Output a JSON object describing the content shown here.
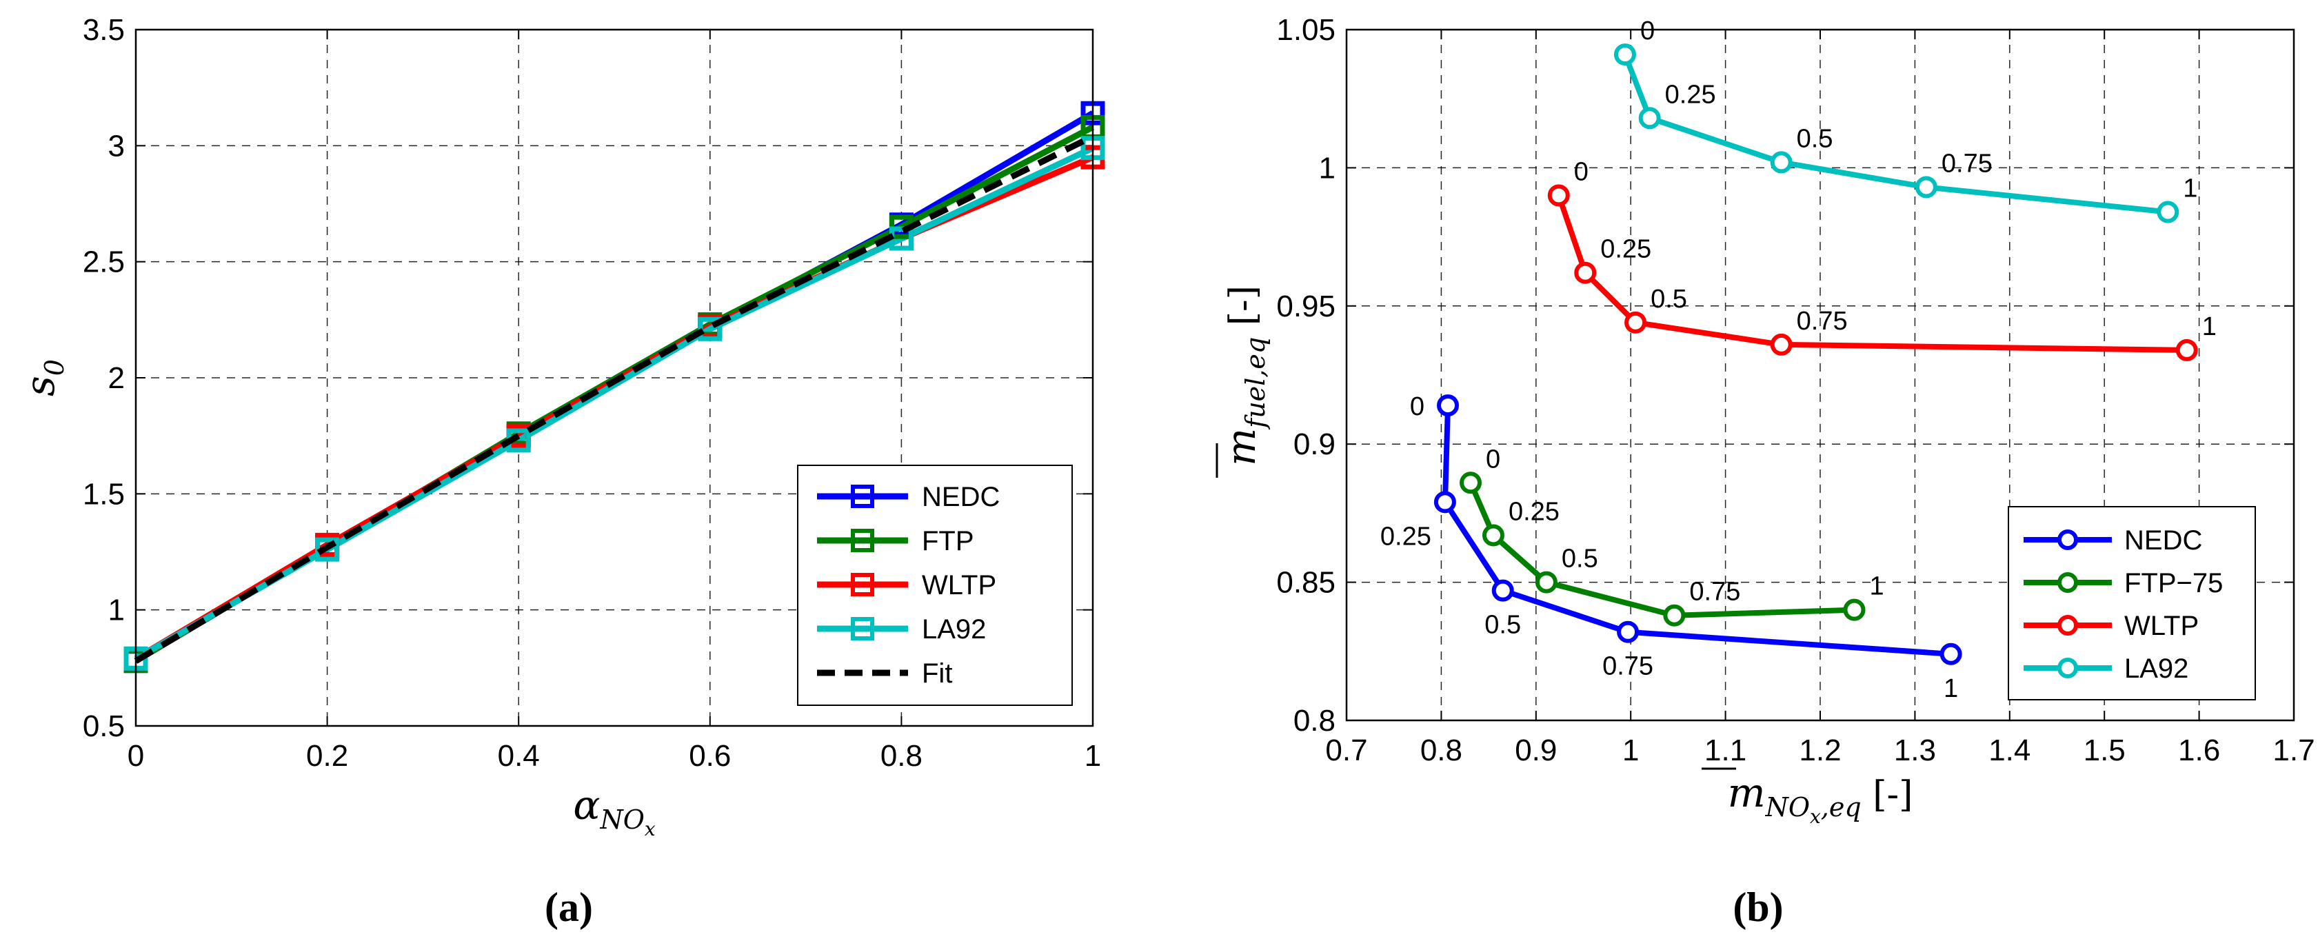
{
  "chart_data": [
    {
      "id": "a",
      "type": "line",
      "caption": "(a)",
      "xlabel": "α",
      "xlabel_sub": "NO",
      "xlabel_subsub": "x",
      "ylabel": "s",
      "ylabel_sub": "0",
      "xlim": [
        0,
        1
      ],
      "ylim": [
        0.5,
        3.5
      ],
      "xticks": [
        0,
        0.2,
        0.4,
        0.6,
        0.8,
        1
      ],
      "xtick_labels": [
        "0",
        "0.2",
        "0.4",
        "0.6",
        "0.8",
        "1"
      ],
      "yticks": [
        0.5,
        1,
        1.5,
        2,
        2.5,
        3,
        3.5
      ],
      "ytick_labels": [
        "0.5",
        "1",
        "1.5",
        "2",
        "2.5",
        "3",
        "3.5"
      ],
      "grid": true,
      "legend_position": "bottom-right",
      "x": [
        0,
        0.2,
        0.4,
        0.6,
        0.8,
        1
      ],
      "series": [
        {
          "name": "NEDC",
          "color": "#0000ff",
          "marker": "square",
          "values": [
            0.78,
            1.27,
            1.75,
            2.22,
            2.66,
            3.14
          ]
        },
        {
          "name": "FTP",
          "color": "#007f00",
          "marker": "square",
          "values": [
            0.78,
            1.27,
            1.76,
            2.23,
            2.65,
            3.08
          ]
        },
        {
          "name": "WLTP",
          "color": "#ff0000",
          "marker": "square",
          "values": [
            0.79,
            1.28,
            1.75,
            2.22,
            2.6,
            2.95
          ]
        },
        {
          "name": "LA92",
          "color": "#00bfbf",
          "marker": "square",
          "values": [
            0.79,
            1.26,
            1.73,
            2.21,
            2.6,
            2.99
          ]
        },
        {
          "name": "Fit",
          "color": "#000000",
          "marker": "none",
          "dashed": true,
          "values": [
            0.78,
            1.27,
            1.75,
            2.22,
            2.63,
            3.04
          ]
        }
      ]
    },
    {
      "id": "b",
      "type": "line",
      "caption": "(b)",
      "xlabel": "m",
      "xlabel_sub": "NO",
      "xlabel_subsub": "x",
      "xlabel_sub2": ",eq",
      "xlabel_unit": "[-]",
      "ylabel": "m",
      "ylabel_sub": "fuel,eq",
      "ylabel_unit": "[-]",
      "xlim": [
        0.7,
        1.7
      ],
      "ylim": [
        0.8,
        1.05
      ],
      "xticks": [
        0.7,
        0.8,
        0.9,
        1,
        1.1,
        1.2,
        1.3,
        1.4,
        1.5,
        1.6,
        1.7
      ],
      "xtick_labels": [
        "0.7",
        "0.8",
        "0.9",
        "1",
        "1.1",
        "1.2",
        "1.3",
        "1.4",
        "1.5",
        "1.6",
        "1.7"
      ],
      "yticks": [
        0.8,
        0.85,
        0.9,
        0.95,
        1,
        1.05
      ],
      "ytick_labels": [
        "0.8",
        "0.85",
        "0.9",
        "0.95",
        "1",
        "1.05"
      ],
      "grid": true,
      "legend_position": "bottom-right",
      "series": [
        {
          "name": "NEDC",
          "color": "#0000ff",
          "marker": "circle",
          "points": [
            {
              "x": 0.807,
              "y": 0.914,
              "label": "0",
              "anchor": "left"
            },
            {
              "x": 0.804,
              "y": 0.879,
              "label": "0.25",
              "anchor": "below-left"
            },
            {
              "x": 0.865,
              "y": 0.847,
              "label": "0.5",
              "anchor": "below"
            },
            {
              "x": 0.997,
              "y": 0.832,
              "label": "0.75",
              "anchor": "below"
            },
            {
              "x": 1.338,
              "y": 0.824,
              "label": "1",
              "anchor": "below"
            }
          ]
        },
        {
          "name": "FTP−75",
          "color": "#007f00",
          "marker": "circle",
          "points": [
            {
              "x": 0.831,
              "y": 0.886,
              "label": "0",
              "anchor": "above-right"
            },
            {
              "x": 0.855,
              "y": 0.867,
              "label": "0.25",
              "anchor": "above-right"
            },
            {
              "x": 0.911,
              "y": 0.85,
              "label": "0.5",
              "anchor": "above-right"
            },
            {
              "x": 1.046,
              "y": 0.838,
              "label": "0.75",
              "anchor": "above-right"
            },
            {
              "x": 1.236,
              "y": 0.84,
              "label": "1",
              "anchor": "above-right"
            }
          ]
        },
        {
          "name": "WLTP",
          "color": "#ff0000",
          "marker": "circle",
          "points": [
            {
              "x": 0.924,
              "y": 0.99,
              "label": "0",
              "anchor": "above-right"
            },
            {
              "x": 0.952,
              "y": 0.962,
              "label": "0.25",
              "anchor": "above-right"
            },
            {
              "x": 1.005,
              "y": 0.944,
              "label": "0.5",
              "anchor": "above-right"
            },
            {
              "x": 1.159,
              "y": 0.936,
              "label": "0.75",
              "anchor": "above-right"
            },
            {
              "x": 1.587,
              "y": 0.934,
              "label": "1",
              "anchor": "above-right"
            }
          ]
        },
        {
          "name": "LA92",
          "color": "#00bfbf",
          "marker": "circle",
          "points": [
            {
              "x": 0.994,
              "y": 1.041,
              "label": "0",
              "anchor": "above-right"
            },
            {
              "x": 1.02,
              "y": 1.018,
              "label": "0.25",
              "anchor": "above-right"
            },
            {
              "x": 1.159,
              "y": 1.002,
              "label": "0.5",
              "anchor": "above-right"
            },
            {
              "x": 1.312,
              "y": 0.993,
              "label": "0.75",
              "anchor": "above-right"
            },
            {
              "x": 1.567,
              "y": 0.984,
              "label": "1",
              "anchor": "above-right"
            }
          ]
        }
      ]
    }
  ]
}
